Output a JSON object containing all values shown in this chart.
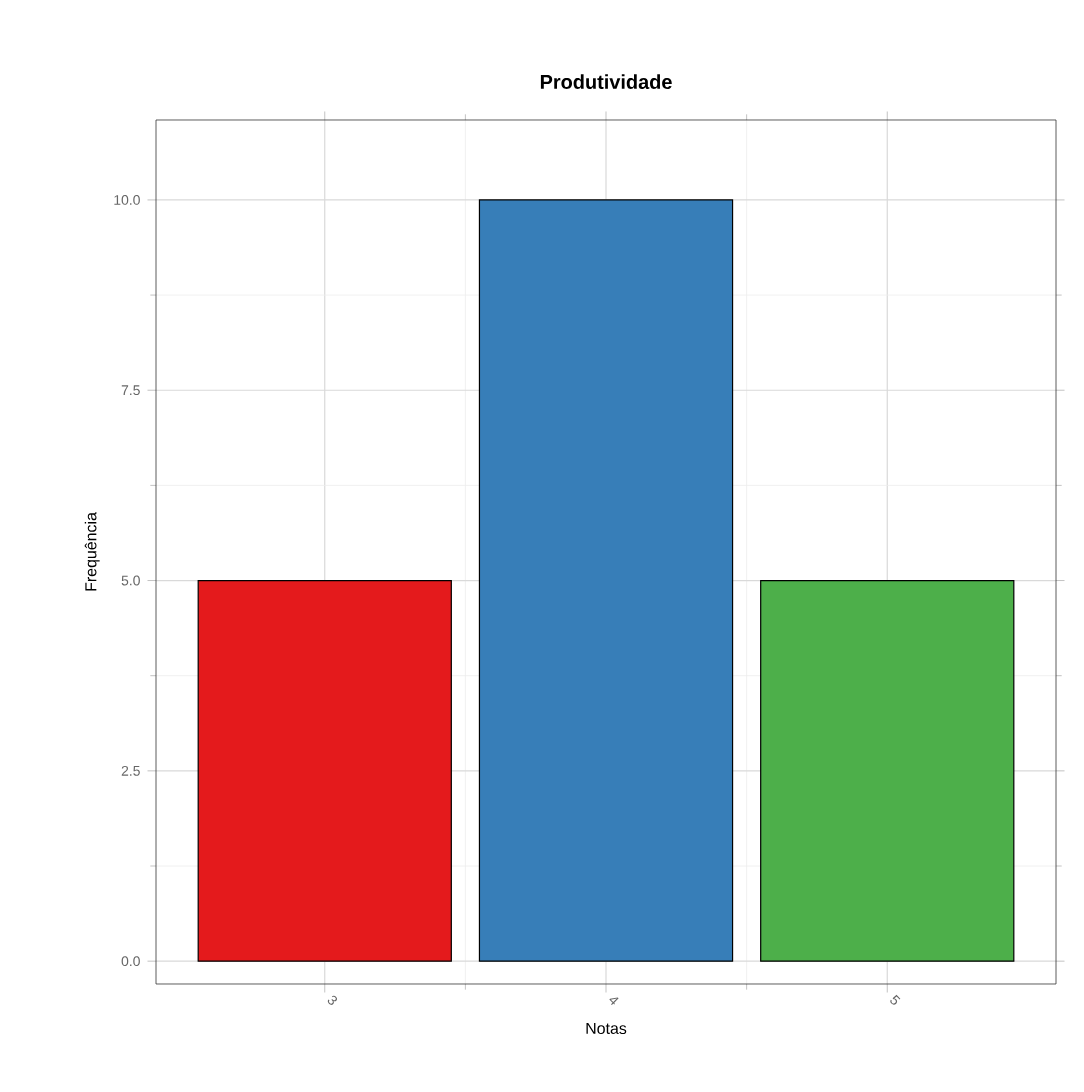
{
  "chart_data": {
    "type": "bar",
    "title": "Produtividade",
    "xlabel": "Notas",
    "ylabel": "Frequência",
    "categories": [
      "3",
      "4",
      "5"
    ],
    "values": [
      5,
      10,
      5
    ],
    "colors": [
      "#e41a1c",
      "#377eb8",
      "#4daf4a"
    ],
    "ylim": [
      -0.3,
      11.05
    ],
    "yticks": [
      {
        "value": 0,
        "label": "0.0"
      },
      {
        "value": 2.5,
        "label": "2.5"
      },
      {
        "value": 5,
        "label": "5.0"
      },
      {
        "value": 7.5,
        "label": "7.5"
      },
      {
        "value": 10,
        "label": "10.0"
      }
    ],
    "grid": true
  }
}
